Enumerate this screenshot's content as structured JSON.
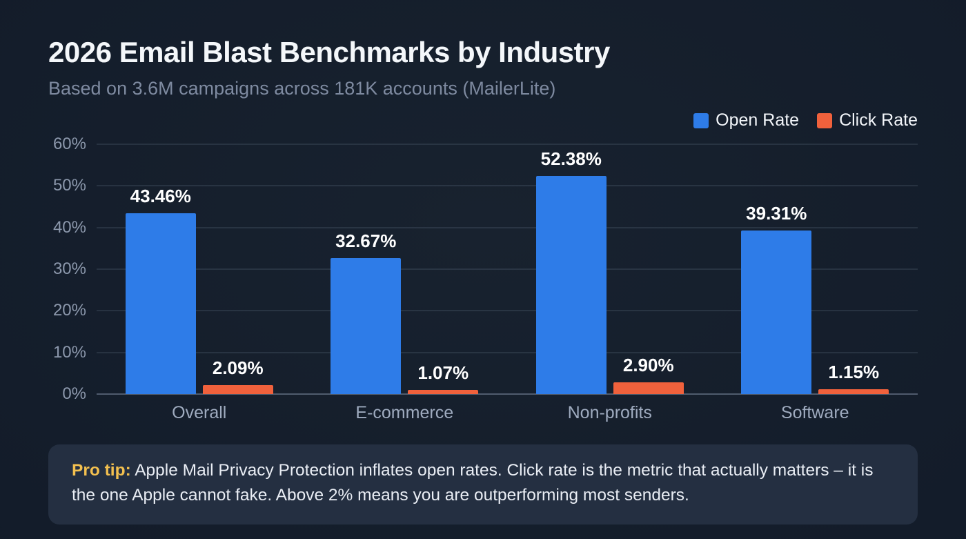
{
  "page": {
    "title": "2026 Email Blast Benchmarks by Industry",
    "subtitle": "Based on 3.6M campaigns across 181K accounts (MailerLite)"
  },
  "legend": [
    {
      "label": "Open Rate",
      "color": "#2e7ce8"
    },
    {
      "label": "Click Rate",
      "color": "#f0613c"
    }
  ],
  "chart_data": {
    "type": "bar",
    "title": "2026 Email Blast Benchmarks by Industry",
    "subtitle": "Based on 3.6M campaigns across 181K accounts (MailerLite)",
    "categories": [
      "Overall",
      "E-commerce",
      "Non-profits",
      "Software"
    ],
    "series": [
      {
        "name": "Open Rate",
        "color": "#2e7ce8",
        "values": [
          43.46,
          32.67,
          52.38,
          39.31
        ],
        "labels": [
          "43.46%",
          "32.67%",
          "52.38%",
          "39.31%"
        ]
      },
      {
        "name": "Click Rate",
        "color": "#f0613c",
        "values": [
          2.09,
          1.07,
          2.9,
          1.15
        ],
        "labels": [
          "2.09%",
          "1.07%",
          "2.90%",
          "1.15%"
        ]
      }
    ],
    "xlabel": "",
    "ylabel": "",
    "ylim": [
      0,
      60
    ],
    "yticks": [
      0,
      10,
      20,
      30,
      40,
      50,
      60
    ],
    "ytick_labels": [
      "0%",
      "10%",
      "20%",
      "30%",
      "40%",
      "50%",
      "60%"
    ],
    "grid": true,
    "legend_position": "top-right"
  },
  "pro_tip": {
    "label": "Pro tip:",
    "text": " Apple Mail Privacy Protection inflates open rates. Click rate is the metric that actually matters – it is the one Apple cannot fake. Above 2% means you are outperforming most senders."
  }
}
